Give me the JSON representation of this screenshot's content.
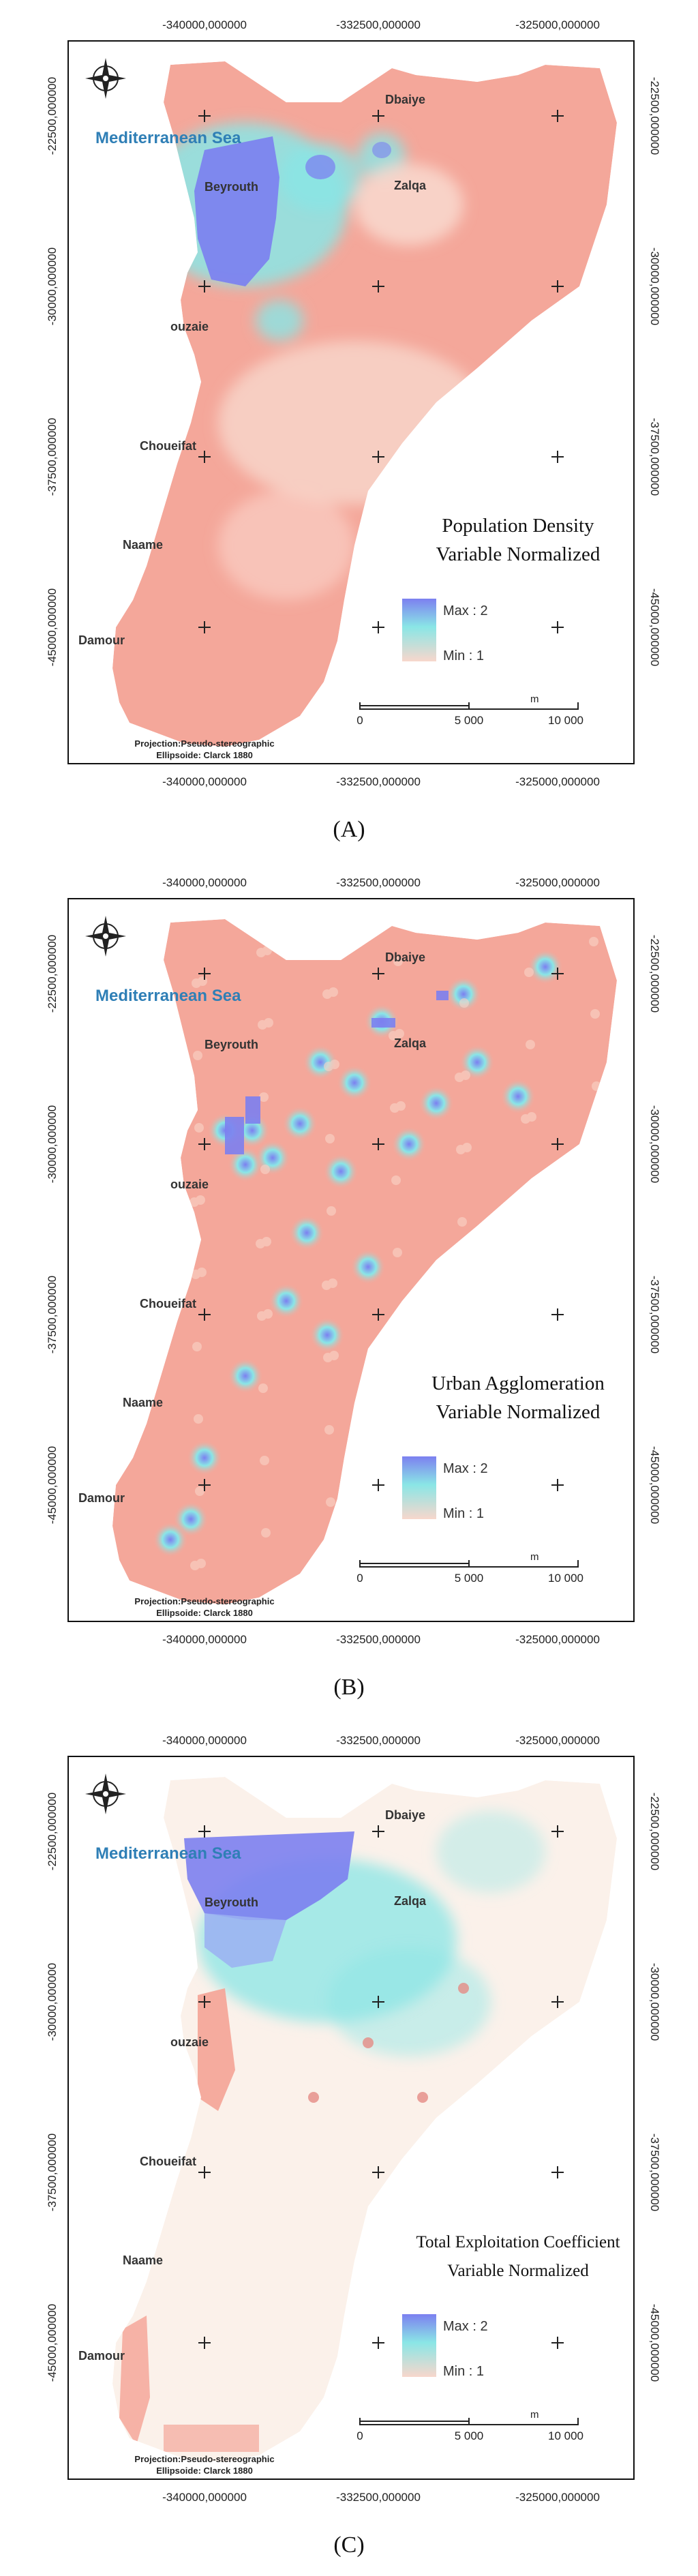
{
  "colors": {
    "land_base": "#f4a79a",
    "max_color": "#7c80f0",
    "mid_color": "#8ae6e6",
    "min_color": "#f8d7cc",
    "sea_label": "#2f7fb6",
    "frame": "#111111"
  },
  "panels": [
    {
      "caption": "(A)",
      "map": {
        "top_ticks": [
          "-340000,000000",
          "-332500,000000",
          "-325000,000000"
        ],
        "bottom_ticks": [
          "-340000,000000",
          "-332500,000000",
          "-325000,000000"
        ],
        "left_ticks": [
          "-22500,000000",
          "-30000,000000",
          "-37500,000000",
          "-45000,000000"
        ],
        "right_ticks": [
          "-22500,000000",
          "-30000,000000",
          "-37500,000000",
          "-45000,000000"
        ],
        "sea_label": "Mediterranean Sea",
        "places": [
          "Dbaiye",
          "Beyrouth",
          "Zalqa",
          "ouzaie",
          "Choueifat",
          "Naame",
          "Damour"
        ],
        "title_line1": "Population Density",
        "title_line2": "Variable Normalized",
        "legend_max": "Max : 2",
        "legend_min": "Min : 1",
        "scale_labels": [
          "0",
          "5 000",
          "10 000"
        ],
        "scale_unit": "m",
        "projection_line1": "Projection:Pseudo-stereographic",
        "projection_line2": "Ellipsoide: Clarck 1880"
      }
    },
    {
      "caption": "(B)",
      "map": {
        "top_ticks": [
          "-340000,000000",
          "-332500,000000",
          "-325000,000000"
        ],
        "bottom_ticks": [
          "-340000,000000",
          "-332500,000000",
          "-325000,000000"
        ],
        "left_ticks": [
          "-22500,000000",
          "-30000,000000",
          "-37500,000000",
          "-45000,000000"
        ],
        "right_ticks": [
          "-22500,000000",
          "-30000,000000",
          "-37500,000000",
          "-45000,000000"
        ],
        "sea_label": "Mediterranean Sea",
        "places": [
          "Dbaiye",
          "Beyrouth",
          "Zalqa",
          "ouzaie",
          "Choueifat",
          "Naame",
          "Damour"
        ],
        "title_line1": "Urban Agglomeration",
        "title_line2": "Variable Normalized",
        "legend_max": "Max : 2",
        "legend_min": "Min : 1",
        "scale_labels": [
          "0",
          "5 000",
          "10 000"
        ],
        "scale_unit": "m",
        "projection_line1": "Projection:Pseudo-stereographic",
        "projection_line2": "Ellipsoide: Clarck 1880"
      }
    },
    {
      "caption": "(C)",
      "map": {
        "top_ticks": [
          "-340000,000000",
          "-332500,000000",
          "-325000,000000"
        ],
        "bottom_ticks": [
          "-340000,000000",
          "-332500,000000",
          "-325000,000000"
        ],
        "left_ticks": [
          "-22500,000000",
          "-30000,000000",
          "-37500,000000",
          "-45000,000000"
        ],
        "right_ticks": [
          "-22500,000000",
          "-30000,000000",
          "-37500,000000",
          "-45000,000000"
        ],
        "sea_label": "Mediterranean Sea",
        "places": [
          "Dbaiye",
          "Beyrouth",
          "Zalqa",
          "ouzaie",
          "Choueifat",
          "Naame",
          "Damour"
        ],
        "title_line1": "Total Exploitation Coefficient",
        "title_line2": "Variable Normalized",
        "legend_max": "Max : 2",
        "legend_min": "Min : 1",
        "scale_labels": [
          "0",
          "5 000",
          "10 000"
        ],
        "scale_unit": "m",
        "projection_line1": "Projection:Pseudo-stereographic",
        "projection_line2": "Ellipsoide: Clarck 1880"
      }
    }
  ]
}
